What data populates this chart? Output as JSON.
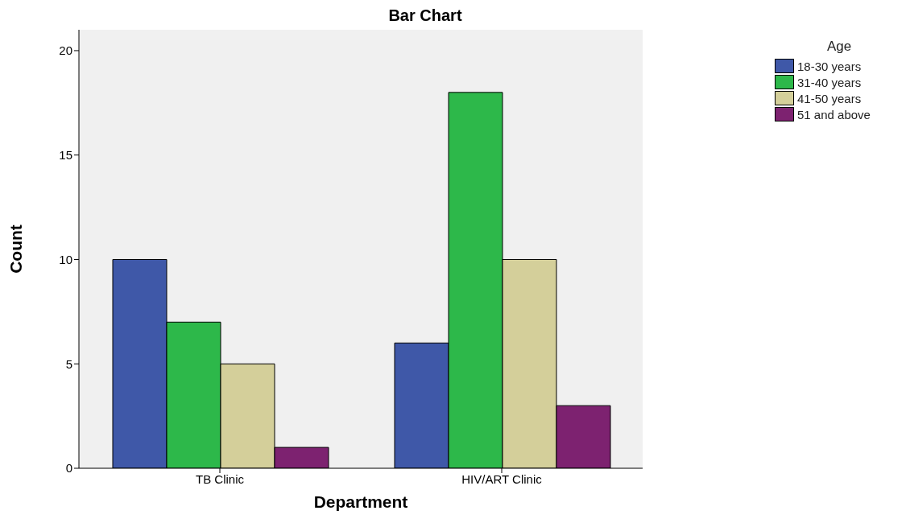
{
  "chart_data": {
    "type": "bar",
    "title": "Bar Chart",
    "xlabel": "Department",
    "ylabel": "Count",
    "legend_title": "Age",
    "categories": [
      "TB Clinic",
      "HIV/ART Clinic"
    ],
    "series": [
      {
        "name": "18-30 years",
        "color": "#3f58a8",
        "values": [
          10,
          6
        ]
      },
      {
        "name": "31-40 years",
        "color": "#2db84a",
        "values": [
          7,
          18
        ]
      },
      {
        "name": "41-50 years",
        "color": "#d4cf9a",
        "values": [
          5,
          10
        ]
      },
      {
        "name": "51 and above",
        "color": "#7d2270",
        "values": [
          1,
          3
        ]
      }
    ],
    "ylim": [
      0,
      21
    ],
    "yticks": [
      0,
      5,
      10,
      15,
      20
    ],
    "grid": false,
    "legend": "top right"
  }
}
